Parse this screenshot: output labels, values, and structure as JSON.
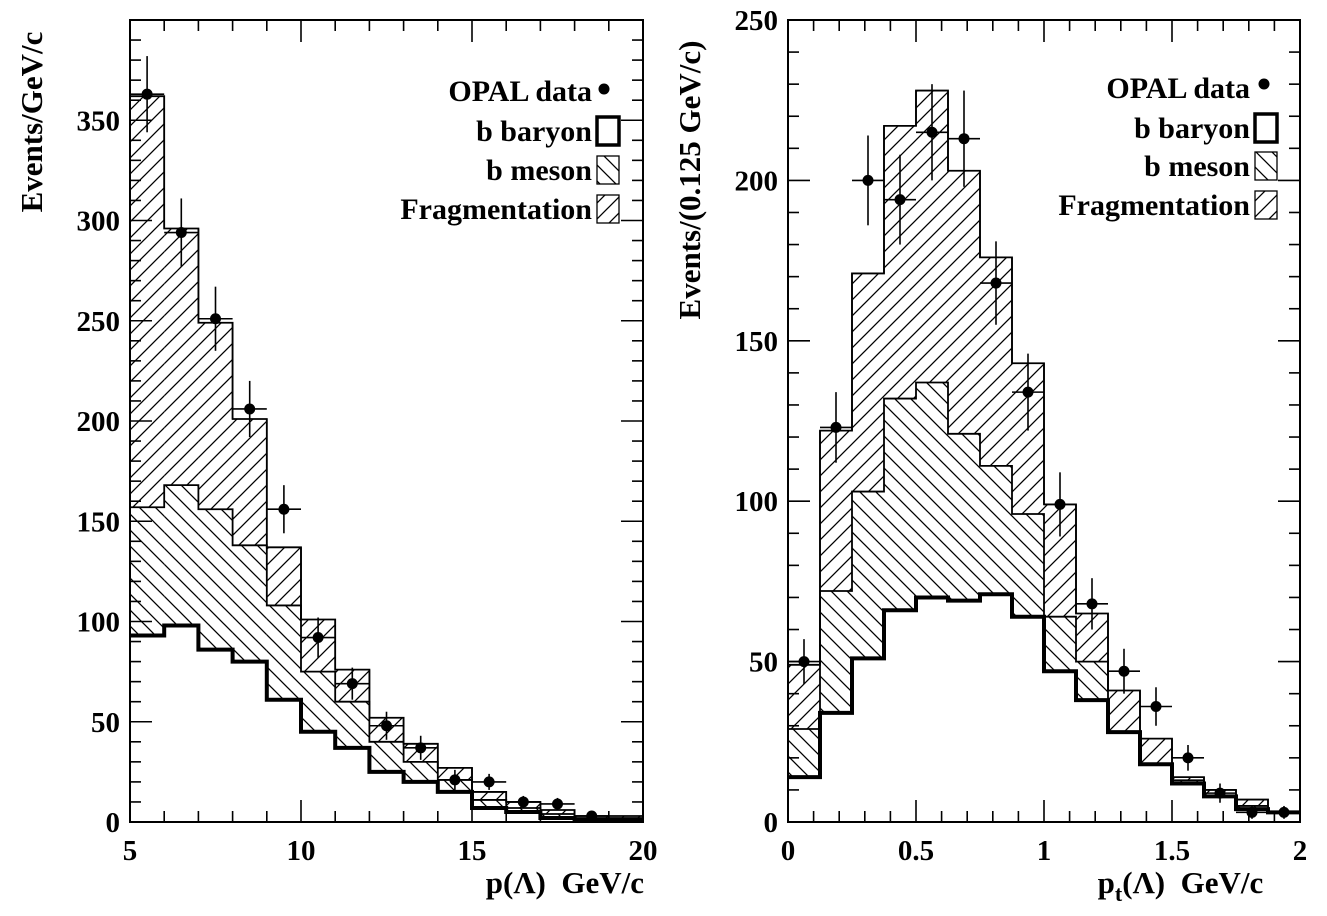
{
  "chart_data": [
    {
      "type": "histogram",
      "stacked": true,
      "xlabel": "p(Λ)  GeV/c",
      "ylabel": "Events/GeV/c",
      "xlim": [
        5,
        20
      ],
      "ylim": [
        0,
        400
      ],
      "x_ticks": [
        "5",
        "10",
        "15",
        "20"
      ],
      "y_ticks": [
        "0",
        "50",
        "100",
        "150",
        "200",
        "250",
        "300",
        "350"
      ],
      "bin_edges": [
        5,
        6,
        7,
        8,
        9,
        10,
        11,
        12,
        13,
        14,
        15,
        16,
        17,
        18,
        19,
        20
      ],
      "components": [
        {
          "name": "b baryon",
          "fill": "none",
          "totals": [
            93,
            98,
            86,
            80,
            61,
            45,
            37,
            25,
            20,
            15,
            7,
            5,
            2,
            1,
            1
          ]
        },
        {
          "name": "b meson",
          "fill": "hatch-back",
          "totals": [
            157,
            168,
            156,
            138,
            108,
            75,
            60,
            40,
            30,
            21,
            11,
            7,
            4,
            2,
            2
          ]
        },
        {
          "name": "Fragmentation",
          "fill": "hatch-forward",
          "totals": [
            362,
            296,
            249,
            201,
            137,
            101,
            76,
            52,
            39,
            27,
            15,
            10,
            6,
            3,
            3
          ]
        }
      ],
      "data_points": {
        "name": "OPAL data",
        "x": [
          5.5,
          6.5,
          7.5,
          8.5,
          9.5,
          10.5,
          11.5,
          12.5,
          13.5,
          14.5,
          15.5,
          16.5,
          17.5,
          18.5
        ],
        "y": [
          363,
          294,
          251,
          206,
          156,
          92,
          69,
          48,
          37,
          21,
          20,
          10,
          9,
          3
        ],
        "yerr": [
          19,
          17,
          16,
          14,
          12,
          10,
          8,
          7,
          6,
          5,
          4,
          3,
          3,
          2
        ],
        "xerr": 0.5
      },
      "legend": [
        "OPAL data",
        "b baryon",
        "b meson",
        "Fragmentation"
      ],
      "legend_position": "top-right"
    },
    {
      "type": "histogram",
      "stacked": true,
      "xlabel": "pt(Λ)  GeV/c",
      "xlabel_parts": {
        "p": "p",
        "sub": "t",
        "rest": "(Λ)  GeV/c"
      },
      "ylabel": "Events/(0.125 GeV/c)",
      "xlim": [
        0,
        2
      ],
      "ylim": [
        0,
        250
      ],
      "x_ticks": [
        "0",
        "0.5",
        "1",
        "1.5",
        "2"
      ],
      "y_ticks": [
        "0",
        "50",
        "100",
        "150",
        "200",
        "250"
      ],
      "bin_edges": [
        0,
        0.125,
        0.25,
        0.375,
        0.5,
        0.625,
        0.75,
        0.875,
        1.0,
        1.125,
        1.25,
        1.375,
        1.5,
        1.625,
        1.75,
        1.875,
        2.0
      ],
      "components": [
        {
          "name": "b baryon",
          "fill": "none",
          "totals": [
            14,
            34,
            51,
            66,
            70,
            69,
            71,
            64,
            47,
            38,
            28,
            18,
            12,
            8,
            4,
            3
          ]
        },
        {
          "name": "b meson",
          "fill": "hatch-back",
          "totals": [
            29,
            72,
            103,
            132,
            137,
            121,
            111,
            96,
            64,
            50,
            28,
            18,
            13,
            8,
            5,
            3
          ]
        },
        {
          "name": "Fragmentation",
          "fill": "hatch-forward",
          "totals": [
            49,
            122,
            171,
            217,
            228,
            203,
            176,
            143,
            99,
            65,
            41,
            26,
            14,
            10,
            7,
            3
          ]
        }
      ],
      "data_points": {
        "name": "OPAL data",
        "x": [
          0.0625,
          0.1875,
          0.3125,
          0.4375,
          0.5625,
          0.6875,
          0.8125,
          0.9375,
          1.0625,
          1.1875,
          1.3125,
          1.4375,
          1.5625,
          1.6875,
          1.8125,
          1.9375
        ],
        "y": [
          50,
          123,
          200,
          194,
          215,
          213,
          168,
          134,
          99,
          68,
          47,
          36,
          20,
          9,
          3,
          3
        ],
        "yerr": [
          7,
          11,
          14,
          14,
          15,
          15,
          13,
          12,
          10,
          8,
          7,
          6,
          4,
          3,
          2,
          2
        ],
        "xerr": 0.0625
      },
      "legend": [
        "OPAL data",
        "b baryon",
        "b meson",
        "Fragmentation"
      ],
      "legend_position": "top-right"
    }
  ]
}
